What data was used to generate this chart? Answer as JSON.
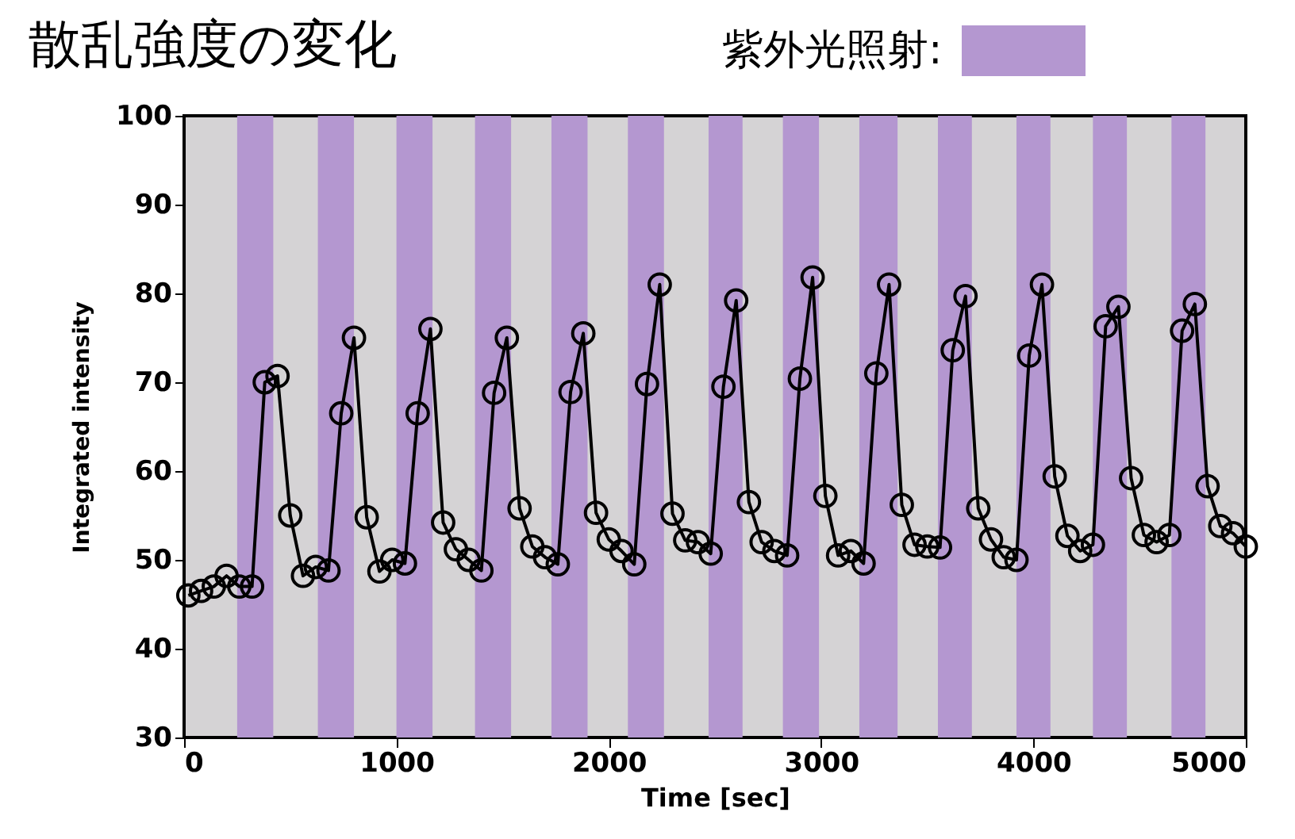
{
  "chart_data": {
    "type": "line",
    "title": "散乱強度の変化",
    "legend_title": "紫外光照射:",
    "xlabel": "Time [sec]",
    "ylabel": "Integrated intensity",
    "marker": "circle",
    "grid": false,
    "xlim": [
      0,
      5000
    ],
    "xticks": [
      0,
      1000,
      2000,
      3000,
      4000,
      5000
    ],
    "ylim": [
      30,
      100
    ],
    "yticks": [
      30,
      40,
      50,
      60,
      70,
      80,
      90,
      100
    ],
    "x": [
      20,
      80,
      140,
      200,
      260,
      320,
      380,
      440,
      500,
      560,
      620,
      680,
      740,
      800,
      860,
      920,
      980,
      1040,
      1100,
      1160,
      1220,
      1280,
      1340,
      1400,
      1460,
      1520,
      1580,
      1640,
      1700,
      1760,
      1820,
      1880,
      1940,
      2000,
      2060,
      2120,
      2180,
      2240,
      2300,
      2360,
      2420,
      2480,
      2540,
      2600,
      2660,
      2720,
      2780,
      2840,
      2900,
      2960,
      3020,
      3080,
      3140,
      3200,
      3260,
      3320,
      3380,
      3440,
      3500,
      3560,
      3620,
      3680,
      3740,
      3800,
      3860,
      3920,
      3980,
      4040,
      4100,
      4160,
      4220,
      4280,
      4340,
      4400,
      4460,
      4520,
      4580,
      4640,
      4700,
      4760,
      4820,
      4880,
      4940,
      5000
    ],
    "series": [
      {
        "color": "#000000",
        "values": [
          46,
          46.5,
          47,
          48.2,
          47,
          47,
          70,
          70.7,
          55,
          48.2,
          49.2,
          48.8,
          66.5,
          75,
          54.8,
          48.7,
          50,
          49.6,
          66.5,
          76,
          54.2,
          51.2,
          50,
          48.8,
          68.8,
          75,
          55.8,
          51.5,
          50.3,
          49.5,
          68.9,
          75.5,
          55.3,
          52.3,
          51,
          49.5,
          69.8,
          81,
          55.2,
          52.2,
          52,
          50.7,
          69.5,
          79.2,
          56.5,
          52,
          51,
          50.5,
          70.4,
          81.8,
          57.2,
          50.5,
          51,
          49.6,
          71,
          81,
          56.2,
          51.7,
          51.5,
          51.4,
          73.6,
          79.7,
          55.8,
          52.3,
          50.3,
          50,
          73,
          81,
          59.4,
          52.7,
          51,
          51.7,
          76.3,
          78.5,
          59.2,
          52.8,
          52,
          52.8,
          75.8,
          78.8,
          58.3,
          53.8,
          53,
          51.5
        ]
      }
    ],
    "bands": [
      {
        "axis": "x",
        "from": 250,
        "to": 420,
        "color": "#b497d0"
      },
      {
        "axis": "x",
        "from": 630,
        "to": 800,
        "color": "#b497d0"
      },
      {
        "axis": "x",
        "from": 1000,
        "to": 1170,
        "color": "#b497d0"
      },
      {
        "axis": "x",
        "from": 1370,
        "to": 1540,
        "color": "#b497d0"
      },
      {
        "axis": "x",
        "from": 1730,
        "to": 1900,
        "color": "#b497d0"
      },
      {
        "axis": "x",
        "from": 2090,
        "to": 2260,
        "color": "#b497d0"
      },
      {
        "axis": "x",
        "from": 2470,
        "to": 2630,
        "color": "#b497d0"
      },
      {
        "axis": "x",
        "from": 2820,
        "to": 2990,
        "color": "#b497d0"
      },
      {
        "axis": "x",
        "from": 3180,
        "to": 3360,
        "color": "#b497d0"
      },
      {
        "axis": "x",
        "from": 3550,
        "to": 3710,
        "color": "#b497d0"
      },
      {
        "axis": "x",
        "from": 3920,
        "to": 4080,
        "color": "#b497d0"
      },
      {
        "axis": "x",
        "from": 4280,
        "to": 4440,
        "color": "#b497d0"
      },
      {
        "axis": "x",
        "from": 4650,
        "to": 4810,
        "color": "#b497d0"
      }
    ]
  }
}
